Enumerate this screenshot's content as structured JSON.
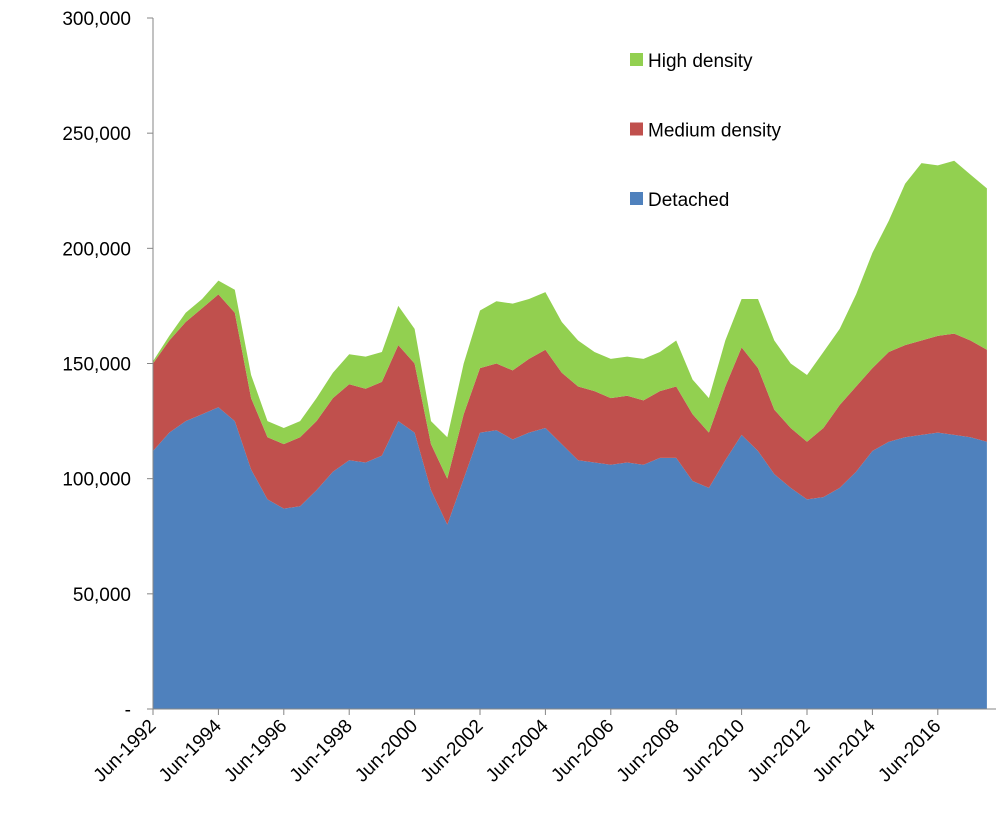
{
  "chart_data": {
    "type": "stacked_area",
    "categories": [
      "Jun-1992",
      null,
      null,
      null,
      "Jun-1994",
      null,
      null,
      null,
      "Jun-1996",
      null,
      null,
      null,
      "Jun-1998",
      null,
      null,
      null,
      "Jun-2000",
      null,
      null,
      null,
      "Jun-2002",
      null,
      null,
      null,
      "Jun-2004",
      null,
      null,
      null,
      "Jun-2006",
      null,
      null,
      null,
      "Jun-2008",
      null,
      null,
      null,
      "Jun-2010",
      null,
      null,
      null,
      "Jun-2012",
      null,
      null,
      null,
      "Jun-2014",
      null,
      null,
      null,
      "Jun-2016",
      null,
      null,
      null
    ],
    "series": [
      {
        "name": "Detached",
        "color": "#4f81bd",
        "values": [
          112000,
          120000,
          125000,
          128000,
          131000,
          125000,
          104000,
          91000,
          87000,
          88000,
          95000,
          103000,
          108000,
          107000,
          110000,
          125000,
          120000,
          95000,
          80000,
          100000,
          120000,
          121000,
          117000,
          120000,
          122000,
          115000,
          108000,
          107000,
          106000,
          107000,
          106000,
          109000,
          109000,
          99000,
          96000,
          108000,
          119000,
          112000,
          102000,
          96000,
          91000,
          92000,
          96000,
          103000,
          112000,
          116000,
          118000,
          119000,
          120000,
          119000,
          118000,
          116000
        ]
      },
      {
        "name": "Medium density",
        "color": "#c0504d",
        "values": [
          38000,
          40000,
          43000,
          46000,
          49000,
          47000,
          31000,
          27000,
          28000,
          30000,
          30000,
          32000,
          33000,
          32000,
          32000,
          33000,
          30000,
          20000,
          20000,
          28000,
          28000,
          29000,
          30000,
          32000,
          34000,
          31000,
          32000,
          31000,
          29000,
          29000,
          28000,
          29000,
          31000,
          29000,
          24000,
          32000,
          38000,
          36000,
          28000,
          26000,
          25000,
          30000,
          36000,
          37000,
          36000,
          39000,
          40000,
          41000,
          42000,
          44000,
          42000,
          40000
        ]
      },
      {
        "name": "High density",
        "color": "#92d050",
        "values": [
          1000,
          2000,
          4000,
          4000,
          6000,
          10000,
          10000,
          7000,
          7000,
          7000,
          10000,
          11000,
          13000,
          14000,
          13000,
          17000,
          15000,
          10000,
          18000,
          22000,
          25000,
          27000,
          29000,
          26000,
          25000,
          22000,
          20000,
          17000,
          17000,
          17000,
          18000,
          17000,
          20000,
          15000,
          15000,
          20000,
          21000,
          30000,
          30000,
          28000,
          29000,
          33000,
          33000,
          40000,
          50000,
          57000,
          70000,
          77000,
          74000,
          75000,
          72000,
          70000
        ]
      }
    ],
    "ylim": [
      0,
      300000
    ],
    "yticks": [
      {
        "value": 0,
        "label": "-"
      },
      {
        "value": 50000,
        "label": "50,000"
      },
      {
        "value": 100000,
        "label": "100,000"
      },
      {
        "value": 150000,
        "label": "150,000"
      },
      {
        "value": 200000,
        "label": "200,000"
      },
      {
        "value": 250000,
        "label": "250,000"
      },
      {
        "value": 300000,
        "label": "300,000"
      }
    ],
    "legend": "top-right"
  }
}
